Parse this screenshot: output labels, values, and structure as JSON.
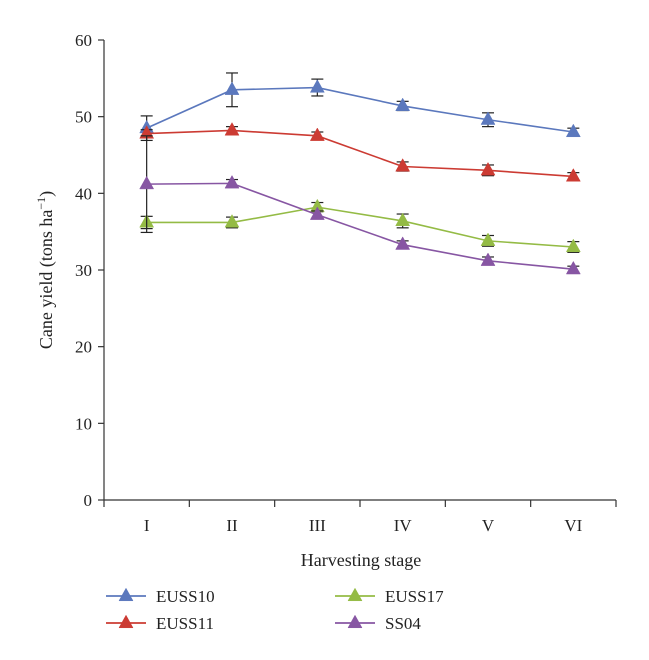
{
  "chart_data": {
    "type": "line",
    "title": "",
    "xlabel": "Harvesting stage",
    "ylabel_main": "Cane yield (tons ha",
    "ylabel_sup": "−1",
    "ylabel_close": ")",
    "categories": [
      "I",
      "II",
      "III",
      "IV",
      "V",
      "VI"
    ],
    "ylim": [
      0,
      60
    ],
    "yticks": [
      0,
      10,
      20,
      30,
      40,
      50,
      60
    ],
    "grid": false,
    "legend_placement": "bottom",
    "series": [
      {
        "name": "EUSS10",
        "color": "#5b78bd",
        "values": [
          48.5,
          53.5,
          53.8,
          51.4,
          49.6,
          48.0
        ],
        "errors": [
          1.6,
          2.2,
          1.1,
          0.6,
          0.9,
          0.5
        ]
      },
      {
        "name": "EUSS11",
        "color": "#cc3b33",
        "values": [
          47.8,
          48.2,
          47.5,
          43.5,
          43.0,
          42.2
        ],
        "errors": [
          0.5,
          0.5,
          0.5,
          0.6,
          0.7,
          0.5
        ]
      },
      {
        "name": "EUSS17",
        "color": "#94bb45",
        "values": [
          36.2,
          36.2,
          38.2,
          36.4,
          33.8,
          33.0
        ],
        "errors": [
          0.8,
          0.7,
          0.6,
          0.9,
          0.7,
          0.7
        ]
      },
      {
        "name": "SS04",
        "color": "#8756a3",
        "values": [
          41.2,
          41.3,
          37.2,
          33.3,
          31.2,
          30.1
        ],
        "errors": [
          6.3,
          0.5,
          0.5,
          0.5,
          0.5,
          0.4
        ]
      }
    ]
  }
}
